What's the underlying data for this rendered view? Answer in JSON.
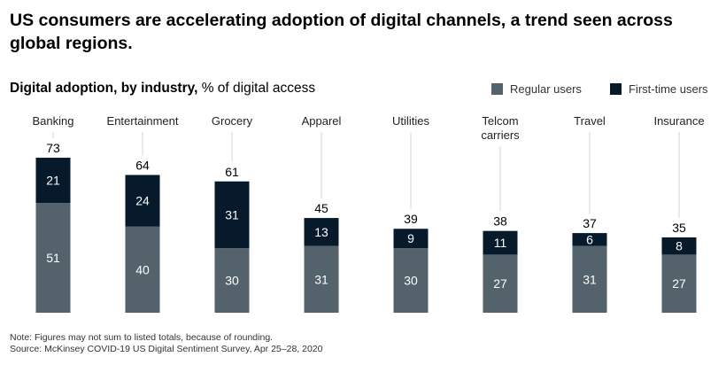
{
  "header": {
    "title": "US consumers are accelerating adoption of digital channels, a trend seen across global regions.",
    "subtitle_bold": "Digital adoption, by industry,",
    "subtitle_rest": " % of digital access"
  },
  "colors": {
    "regular": "#53626b",
    "first_time": "#061a2b",
    "connector": "#d6d6d6"
  },
  "chart_data": {
    "type": "bar",
    "stacked": true,
    "categories": [
      "Banking",
      "Entertainment",
      "Grocery",
      "Apparel",
      "Utilities",
      "Telcom carriers",
      "Travel",
      "Insurance"
    ],
    "category_lines": [
      [
        "Banking"
      ],
      [
        "Entertainment"
      ],
      [
        "Grocery"
      ],
      [
        "Apparel"
      ],
      [
        "Utilities"
      ],
      [
        "Telcom",
        "carriers"
      ],
      [
        "Travel"
      ],
      [
        "Insurance"
      ]
    ],
    "series": [
      {
        "name": "Regular users",
        "values": [
          51,
          40,
          30,
          31,
          30,
          27,
          31,
          27
        ]
      },
      {
        "name": "First-time users",
        "values": [
          21,
          24,
          31,
          13,
          9,
          11,
          6,
          8
        ]
      }
    ],
    "totals": [
      73,
      64,
      61,
      45,
      39,
      38,
      37,
      35
    ],
    "ylim": [
      0,
      100
    ],
    "legend_position": "top-right"
  },
  "footer": {
    "note": "Note: Figures may not sum to listed totals, because of rounding.",
    "source": "Source: McKinsey COVID-19 US Digital Sentiment Survey, Apr 25–28, 2020"
  }
}
